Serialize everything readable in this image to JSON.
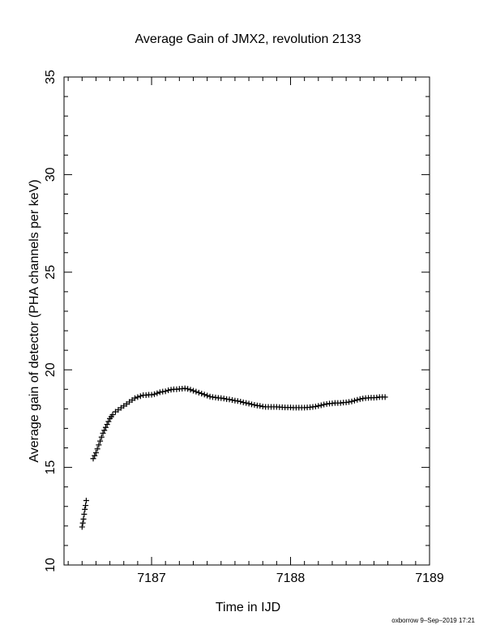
{
  "chart_data": {
    "type": "scatter",
    "title": "Average Gain of JMX2, revolution 2133",
    "xlabel": "Time in IJD",
    "ylabel": "Average gain of detector (PHA channels per keV)",
    "xlim": [
      7186.37,
      7189.0
    ],
    "ylim": [
      10,
      35
    ],
    "xticks": [
      7187,
      7188,
      7189
    ],
    "yticks": [
      10,
      15,
      20,
      25,
      30,
      35
    ],
    "marker": "+",
    "grid": false,
    "series": [
      {
        "points": [
          [
            7186.5,
            11.95
          ],
          [
            7186.505,
            12.15
          ],
          [
            7186.51,
            12.35
          ],
          [
            7186.515,
            12.6
          ],
          [
            7186.52,
            12.85
          ],
          [
            7186.525,
            13.05
          ],
          [
            7186.53,
            13.3
          ],
          [
            7186.58,
            15.45
          ],
          [
            7186.59,
            15.6
          ],
          [
            7186.6,
            15.75
          ],
          [
            7186.61,
            15.95
          ],
          [
            7186.62,
            16.15
          ],
          [
            7186.63,
            16.35
          ],
          [
            7186.64,
            16.55
          ],
          [
            7186.65,
            16.75
          ],
          [
            7186.66,
            16.9
          ],
          [
            7186.67,
            17.05
          ],
          [
            7186.68,
            17.2
          ],
          [
            7186.69,
            17.35
          ],
          [
            7186.7,
            17.5
          ],
          [
            7186.71,
            17.6
          ],
          [
            7186.72,
            17.7
          ],
          [
            7186.74,
            17.85
          ],
          [
            7186.76,
            17.95
          ],
          [
            7186.78,
            18.05
          ],
          [
            7186.8,
            18.15
          ],
          [
            7186.82,
            18.25
          ],
          [
            7186.84,
            18.35
          ],
          [
            7186.86,
            18.45
          ],
          [
            7186.88,
            18.55
          ],
          [
            7186.9,
            18.6
          ],
          [
            7186.92,
            18.65
          ],
          [
            7186.94,
            18.7
          ],
          [
            7186.96,
            18.7
          ],
          [
            7186.98,
            18.72
          ],
          [
            7187.0,
            18.72
          ],
          [
            7187.02,
            18.75
          ],
          [
            7187.04,
            18.8
          ],
          [
            7187.06,
            18.85
          ],
          [
            7187.08,
            18.88
          ],
          [
            7187.1,
            18.9
          ],
          [
            7187.12,
            18.95
          ],
          [
            7187.14,
            18.98
          ],
          [
            7187.16,
            19.0
          ],
          [
            7187.18,
            19.0
          ],
          [
            7187.2,
            19.02
          ],
          [
            7187.22,
            19.03
          ],
          [
            7187.24,
            19.05
          ],
          [
            7187.26,
            19.02
          ],
          [
            7187.28,
            18.98
          ],
          [
            7187.3,
            18.93
          ],
          [
            7187.32,
            18.88
          ],
          [
            7187.34,
            18.83
          ],
          [
            7187.36,
            18.78
          ],
          [
            7187.38,
            18.73
          ],
          [
            7187.4,
            18.68
          ],
          [
            7187.42,
            18.63
          ],
          [
            7187.44,
            18.6
          ],
          [
            7187.46,
            18.58
          ],
          [
            7187.48,
            18.56
          ],
          [
            7187.5,
            18.55
          ],
          [
            7187.52,
            18.53
          ],
          [
            7187.54,
            18.5
          ],
          [
            7187.56,
            18.48
          ],
          [
            7187.58,
            18.45
          ],
          [
            7187.6,
            18.42
          ],
          [
            7187.62,
            18.4
          ],
          [
            7187.64,
            18.37
          ],
          [
            7187.66,
            18.33
          ],
          [
            7187.68,
            18.3
          ],
          [
            7187.7,
            18.27
          ],
          [
            7187.72,
            18.23
          ],
          [
            7187.74,
            18.2
          ],
          [
            7187.76,
            18.17
          ],
          [
            7187.78,
            18.15
          ],
          [
            7187.8,
            18.12
          ],
          [
            7187.82,
            18.1
          ],
          [
            7187.84,
            18.1
          ],
          [
            7187.86,
            18.1
          ],
          [
            7187.88,
            18.1
          ],
          [
            7187.9,
            18.1
          ],
          [
            7187.92,
            18.09
          ],
          [
            7187.94,
            18.08
          ],
          [
            7187.96,
            18.07
          ],
          [
            7187.98,
            18.07
          ],
          [
            7188.0,
            18.07
          ],
          [
            7188.02,
            18.06
          ],
          [
            7188.04,
            18.06
          ],
          [
            7188.06,
            18.06
          ],
          [
            7188.08,
            18.06
          ],
          [
            7188.1,
            18.06
          ],
          [
            7188.12,
            18.07
          ],
          [
            7188.14,
            18.08
          ],
          [
            7188.16,
            18.1
          ],
          [
            7188.18,
            18.12
          ],
          [
            7188.2,
            18.15
          ],
          [
            7188.22,
            18.18
          ],
          [
            7188.24,
            18.22
          ],
          [
            7188.26,
            18.25
          ],
          [
            7188.28,
            18.27
          ],
          [
            7188.3,
            18.28
          ],
          [
            7188.32,
            18.3
          ],
          [
            7188.34,
            18.3
          ],
          [
            7188.36,
            18.3
          ],
          [
            7188.38,
            18.32
          ],
          [
            7188.4,
            18.33
          ],
          [
            7188.42,
            18.35
          ],
          [
            7188.44,
            18.38
          ],
          [
            7188.46,
            18.42
          ],
          [
            7188.48,
            18.46
          ],
          [
            7188.5,
            18.5
          ],
          [
            7188.52,
            18.53
          ],
          [
            7188.54,
            18.55
          ],
          [
            7188.56,
            18.56
          ],
          [
            7188.58,
            18.57
          ],
          [
            7188.6,
            18.57
          ],
          [
            7188.62,
            18.58
          ],
          [
            7188.64,
            18.6
          ],
          [
            7188.66,
            18.6
          ],
          [
            7188.68,
            18.6
          ]
        ]
      }
    ]
  },
  "footer": "oxborrow  9–Sep–2019 17:21"
}
